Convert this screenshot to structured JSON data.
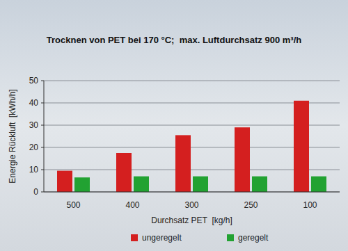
{
  "chart_data": {
    "type": "bar",
    "title": "Trocknen von PET bei 170 °C;  max. Luftdurchsatz 900 m³/h",
    "x_label": "Durchsatz PET  [kg/h]",
    "y_label": "Energie Rückluft  [kWh/h]",
    "categories": [
      "500",
      "400",
      "300",
      "250",
      "100"
    ],
    "series": [
      {
        "name": "ungeregelt",
        "color": "#d41f1f",
        "values": [
          9.5,
          17.5,
          25.5,
          29,
          41
        ]
      },
      {
        "name": "geregelt",
        "color": "#22a232",
        "values": [
          6.5,
          7,
          7,
          7,
          7
        ]
      }
    ],
    "ylim": [
      0,
      50
    ],
    "yticks": [
      0,
      10,
      20,
      30,
      40,
      50
    ],
    "grid": true,
    "legend": "bottom"
  }
}
